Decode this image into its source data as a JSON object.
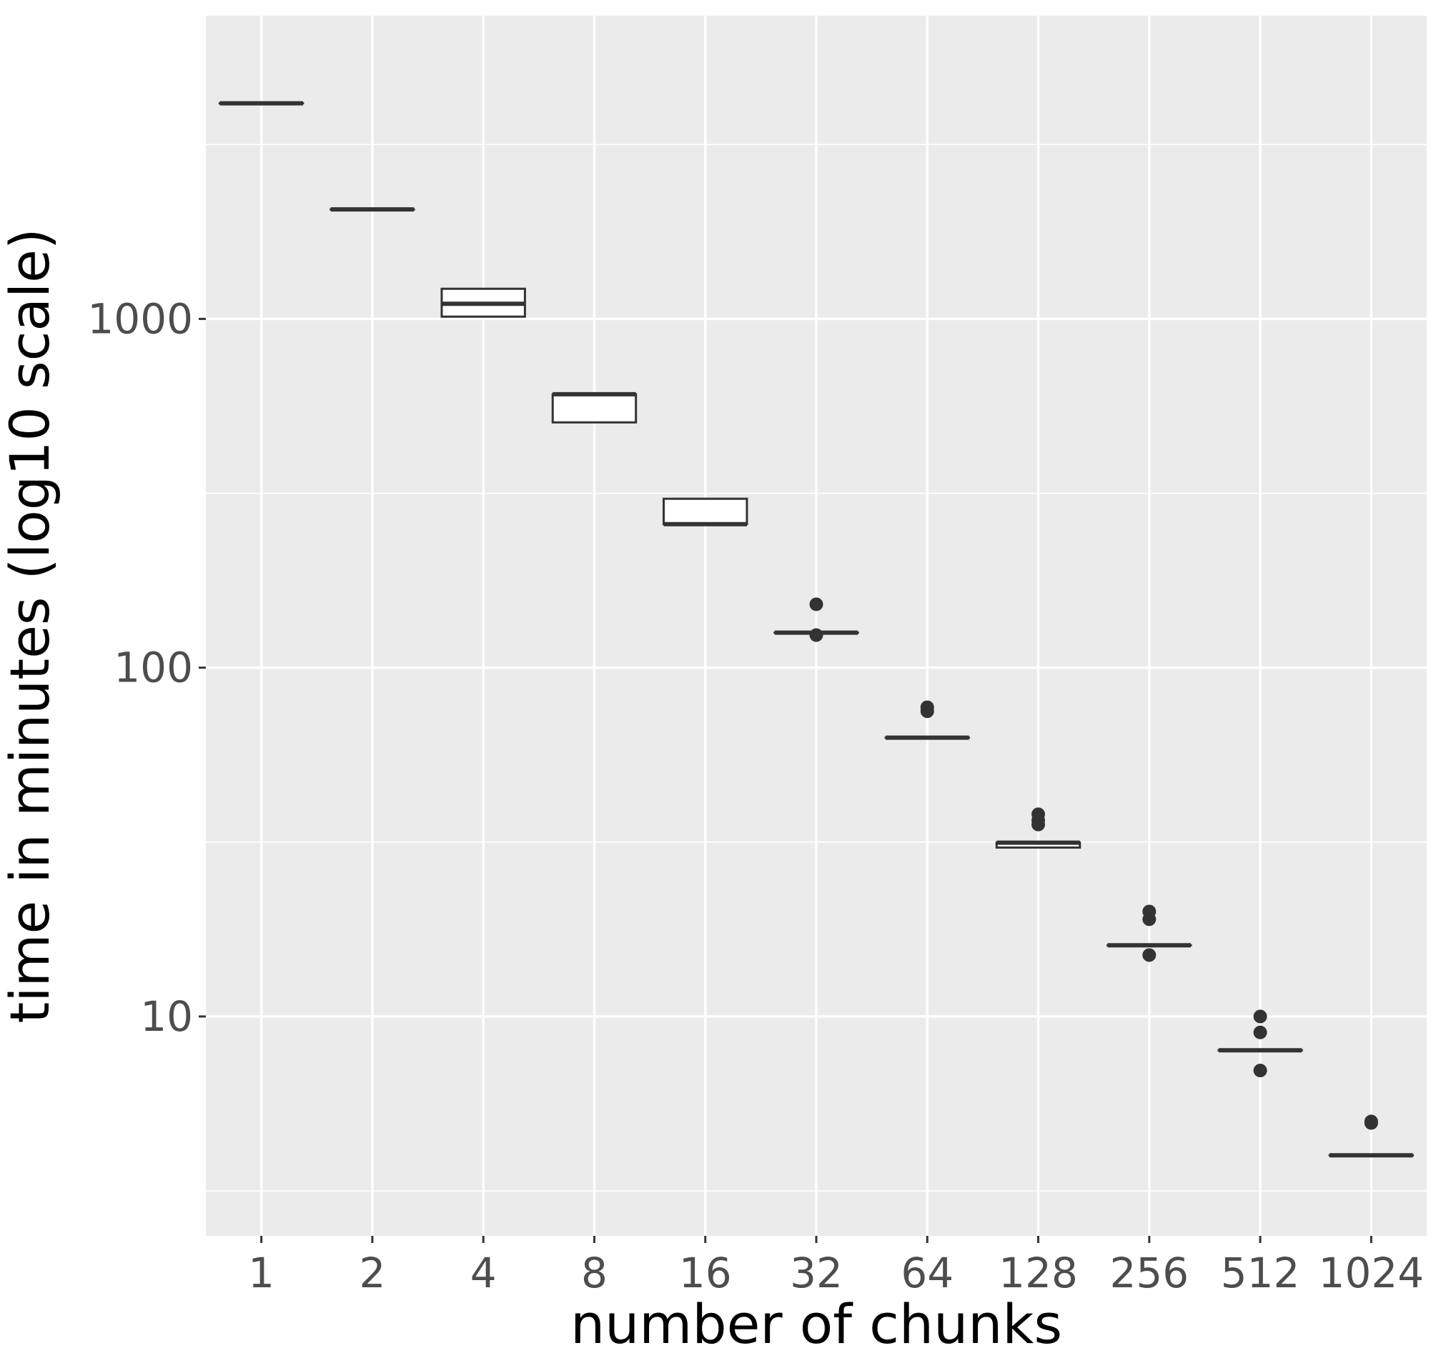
{
  "chart_data": {
    "type": "boxplot",
    "xlabel": "number of chunks",
    "ylabel": "time in minutes (log10 scale)",
    "y_scale": "log10",
    "ylim": [
      2.35,
      7400
    ],
    "y_ticks": [
      10,
      100,
      1000
    ],
    "y_tick_labels": [
      "10",
      "100",
      "1000"
    ],
    "grid": true,
    "colors": {
      "panel_background": "#ebebeb",
      "grid_line": "#ffffff",
      "box_stroke": "#333333",
      "box_fill": "#ffffff",
      "outlier": "#333333",
      "tick_text": "#4d4d4d"
    },
    "categories": [
      "1",
      "2",
      "4",
      "8",
      "16",
      "32",
      "64",
      "128",
      "256",
      "512",
      "1024"
    ],
    "boxes": [
      {
        "category": "1",
        "lower": 4150,
        "q1": 4150,
        "median": 4150,
        "q3": 4150,
        "upper": 4150,
        "outliers": []
      },
      {
        "category": "2",
        "lower": 2060,
        "q1": 2060,
        "median": 2060,
        "q3": 2060,
        "upper": 2060,
        "outliers": []
      },
      {
        "category": "4",
        "lower": 1015,
        "q1": 1015,
        "median": 1105,
        "q3": 1220,
        "upper": 1220,
        "outliers": []
      },
      {
        "category": "8",
        "lower": 505,
        "q1": 505,
        "median": 608,
        "q3": 608,
        "upper": 608,
        "outliers": []
      },
      {
        "category": "16",
        "lower": 258,
        "q1": 258,
        "median": 258,
        "q3": 305,
        "upper": 305,
        "outliers": []
      },
      {
        "category": "32",
        "lower": 126,
        "q1": 126,
        "median": 126,
        "q3": 126,
        "upper": 126,
        "outliers": [
          152,
          124
        ]
      },
      {
        "category": "64",
        "lower": 63,
        "q1": 63,
        "median": 63,
        "q3": 63,
        "upper": 63,
        "outliers": [
          77,
          75
        ]
      },
      {
        "category": "128",
        "lower": 30.5,
        "q1": 30.5,
        "median": 31.5,
        "q3": 31.5,
        "upper": 31.5,
        "outliers": [
          38,
          36.5,
          35.5
        ]
      },
      {
        "category": "256",
        "lower": 16,
        "q1": 16,
        "median": 16,
        "q3": 16,
        "upper": 16,
        "outliers": [
          20,
          19,
          15
        ]
      },
      {
        "category": "512",
        "lower": 8,
        "q1": 8,
        "median": 8,
        "q3": 8,
        "upper": 8,
        "outliers": [
          10,
          9,
          7
        ]
      },
      {
        "category": "1024",
        "lower": 4,
        "q1": 4,
        "median": 4,
        "q3": 4,
        "upper": 4,
        "outliers": [
          5,
          4.95
        ]
      }
    ]
  }
}
